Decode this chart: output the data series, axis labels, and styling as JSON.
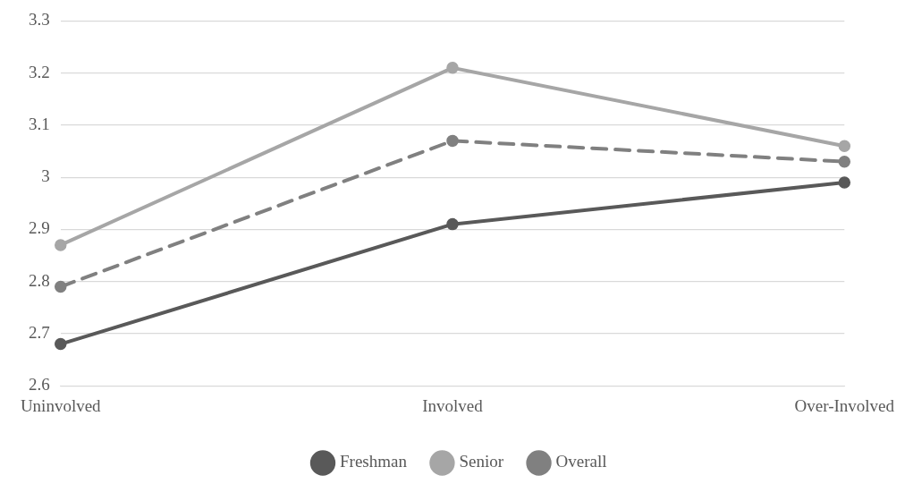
{
  "chart_data": {
    "type": "line",
    "categories": [
      "Uninvolved",
      "Involved",
      "Over-Involved"
    ],
    "series": [
      {
        "name": "Freshman",
        "color": "#595959",
        "values": [
          2.68,
          2.91,
          2.99
        ]
      },
      {
        "name": "Senior",
        "color": "#a6a6a6",
        "values": [
          2.87,
          3.21,
          3.06
        ]
      },
      {
        "name": "Overall",
        "color": "#808080",
        "values": [
          2.79,
          3.07,
          3.03
        ],
        "line_style": "dashed"
      }
    ],
    "ylim": [
      2.6,
      3.3
    ],
    "yticks": [
      2.6,
      2.7,
      2.8,
      2.9,
      3,
      3.1,
      3.2,
      3.3
    ],
    "grid": "y",
    "legend": "bottom",
    "marker": "circle",
    "line_style": "solid"
  }
}
